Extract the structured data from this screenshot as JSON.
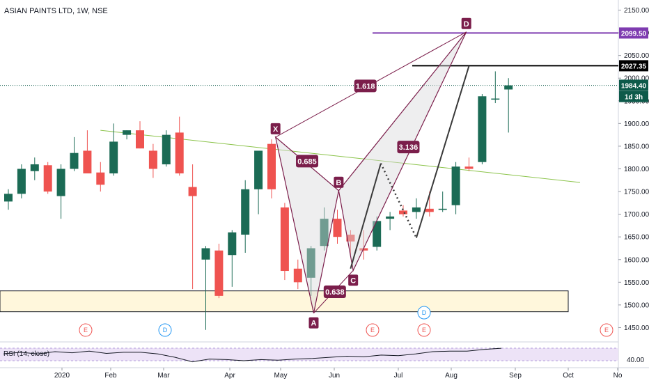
{
  "header": {
    "title": "ASIAN PAINTS LTD, 1W, NSE"
  },
  "colors": {
    "up": "#26a69a",
    "up_dark": "#0d5a4a",
    "up_candle": "#1b6b55",
    "down": "#ef5350",
    "pattern": "#7b1e4b",
    "pattern_fill": "#d9d9dc",
    "trendline": "#8bc34a",
    "level_purple": "#7e3bb0",
    "level_black": "#000000",
    "zone_fill": "#fff7dc",
    "event_red": "#ef5350",
    "event_blue": "#2196f3",
    "rsi_band": "#ede3f7",
    "rsi_line": "#131722"
  },
  "chart_data": {
    "type": "candlestick",
    "title": "ASIAN PAINTS LTD, 1W, NSE",
    "ylim": [
      1420,
      2160
    ],
    "y_ticks": [
      "2150.00",
      "2100.00",
      "2050.00",
      "2000.00",
      "1950.00",
      "1900.00",
      "1850.00",
      "1800.00",
      "1750.00",
      "1700.00",
      "1650.00",
      "1600.00",
      "1550.00",
      "1500.00",
      "1450.00"
    ],
    "x_labels": [
      "2020",
      "Feb",
      "Mar",
      "Apr",
      "May",
      "Jun",
      "Jul",
      "Aug",
      "Sep",
      "Oct",
      "No"
    ],
    "candles": [
      {
        "o": 1728,
        "h": 1755,
        "l": 1710,
        "c": 1745
      },
      {
        "o": 1745,
        "h": 1810,
        "l": 1735,
        "c": 1800
      },
      {
        "o": 1795,
        "h": 1825,
        "l": 1775,
        "c": 1810
      },
      {
        "o": 1808,
        "h": 1815,
        "l": 1745,
        "c": 1750
      },
      {
        "o": 1740,
        "h": 1810,
        "l": 1690,
        "c": 1800
      },
      {
        "o": 1800,
        "h": 1870,
        "l": 1795,
        "c": 1835
      },
      {
        "o": 1840,
        "h": 1885,
        "l": 1790,
        "c": 1790
      },
      {
        "o": 1792,
        "h": 1815,
        "l": 1750,
        "c": 1765
      },
      {
        "o": 1790,
        "h": 1900,
        "l": 1785,
        "c": 1860
      },
      {
        "o": 1875,
        "h": 1885,
        "l": 1865,
        "c": 1885
      },
      {
        "o": 1885,
        "h": 1905,
        "l": 1845,
        "c": 1845
      },
      {
        "o": 1840,
        "h": 1855,
        "l": 1780,
        "c": 1800
      },
      {
        "o": 1810,
        "h": 1885,
        "l": 1805,
        "c": 1875
      },
      {
        "o": 1880,
        "h": 1915,
        "l": 1785,
        "c": 1790
      },
      {
        "o": 1760,
        "h": 1810,
        "l": 1535,
        "c": 1740
      },
      {
        "o": 1600,
        "h": 1630,
        "l": 1445,
        "c": 1625
      },
      {
        "o": 1620,
        "h": 1635,
        "l": 1515,
        "c": 1520
      },
      {
        "o": 1610,
        "h": 1665,
        "l": 1540,
        "c": 1660
      },
      {
        "o": 1655,
        "h": 1775,
        "l": 1615,
        "c": 1755
      },
      {
        "o": 1755,
        "h": 1835,
        "l": 1700,
        "c": 1840
      },
      {
        "o": 1855,
        "h": 1865,
        "l": 1735,
        "c": 1755
      },
      {
        "o": 1715,
        "h": 1725,
        "l": 1555,
        "c": 1575
      },
      {
        "o": 1580,
        "h": 1600,
        "l": 1535,
        "c": 1550
      },
      {
        "o": 1560,
        "h": 1630,
        "l": 1520,
        "c": 1625
      },
      {
        "o": 1630,
        "h": 1715,
        "l": 1620,
        "c": 1690
      },
      {
        "o": 1690,
        "h": 1710,
        "l": 1635,
        "c": 1650
      },
      {
        "o": 1655,
        "h": 1665,
        "l": 1610,
        "c": 1640
      },
      {
        "o": 1625,
        "h": 1665,
        "l": 1600,
        "c": 1620
      },
      {
        "o": 1628,
        "h": 1695,
        "l": 1620,
        "c": 1685
      },
      {
        "o": 1690,
        "h": 1705,
        "l": 1665,
        "c": 1695
      },
      {
        "o": 1708,
        "h": 1720,
        "l": 1695,
        "c": 1700
      },
      {
        "o": 1705,
        "h": 1735,
        "l": 1690,
        "c": 1715
      },
      {
        "o": 1712,
        "h": 1750,
        "l": 1695,
        "c": 1705
      },
      {
        "o": 1710,
        "h": 1750,
        "l": 1705,
        "c": 1712
      },
      {
        "o": 1720,
        "h": 1815,
        "l": 1700,
        "c": 1805
      },
      {
        "o": 1805,
        "h": 1825,
        "l": 1795,
        "c": 1800
      },
      {
        "o": 1815,
        "h": 1965,
        "l": 1810,
        "c": 1960
      },
      {
        "o": 1955,
        "h": 2015,
        "l": 1945,
        "c": 1955
      },
      {
        "o": 1975,
        "h": 2000,
        "l": 1880,
        "c": 1984
      }
    ],
    "harmonic_pattern": {
      "points": [
        {
          "name": "X",
          "value": 1870
        },
        {
          "name": "A",
          "value": 1482
        },
        {
          "name": "B",
          "value": 1752
        },
        {
          "name": "C",
          "value": 1576
        },
        {
          "name": "D",
          "value": 2102
        }
      ],
      "ratios": [
        "0.685",
        "0.638",
        "1.618",
        "3.136"
      ]
    },
    "price_tags": [
      {
        "value": "2099.50",
        "color": "#7e3bb0"
      },
      {
        "value": "2027.35",
        "color": "#000000"
      },
      {
        "value": "1984.40",
        "color": "#0d5a4a"
      }
    ],
    "countdown_tag": "1d 3h",
    "support_zone": [
      1485,
      1531
    ],
    "trendline": {
      "from": 1885,
      "to": 1770
    },
    "projection_path": [
      1580,
      1812,
      1648,
      2027
    ],
    "events": [
      {
        "label": "E",
        "color": "#ef5350",
        "row": "bottom"
      },
      {
        "label": "D",
        "color": "#2196f3",
        "row": "bottom"
      },
      {
        "label": "E",
        "color": "#ef5350",
        "row": "bottom"
      },
      {
        "label": "D",
        "color": "#2196f3",
        "row": "top"
      },
      {
        "label": "E",
        "color": "#ef5350",
        "row": "bottom"
      },
      {
        "label": "E",
        "color": "#ef5350",
        "row": "bottom"
      }
    ],
    "rsi": {
      "label": "RSI (14, close)",
      "tick": "40.00",
      "values": [
        52,
        55,
        52,
        56,
        54,
        57,
        53,
        55,
        55,
        52,
        46,
        38,
        43,
        42,
        40,
        42,
        41,
        43,
        44,
        46,
        48,
        47,
        50,
        49,
        52,
        56,
        57,
        57,
        60,
        62
      ]
    }
  }
}
